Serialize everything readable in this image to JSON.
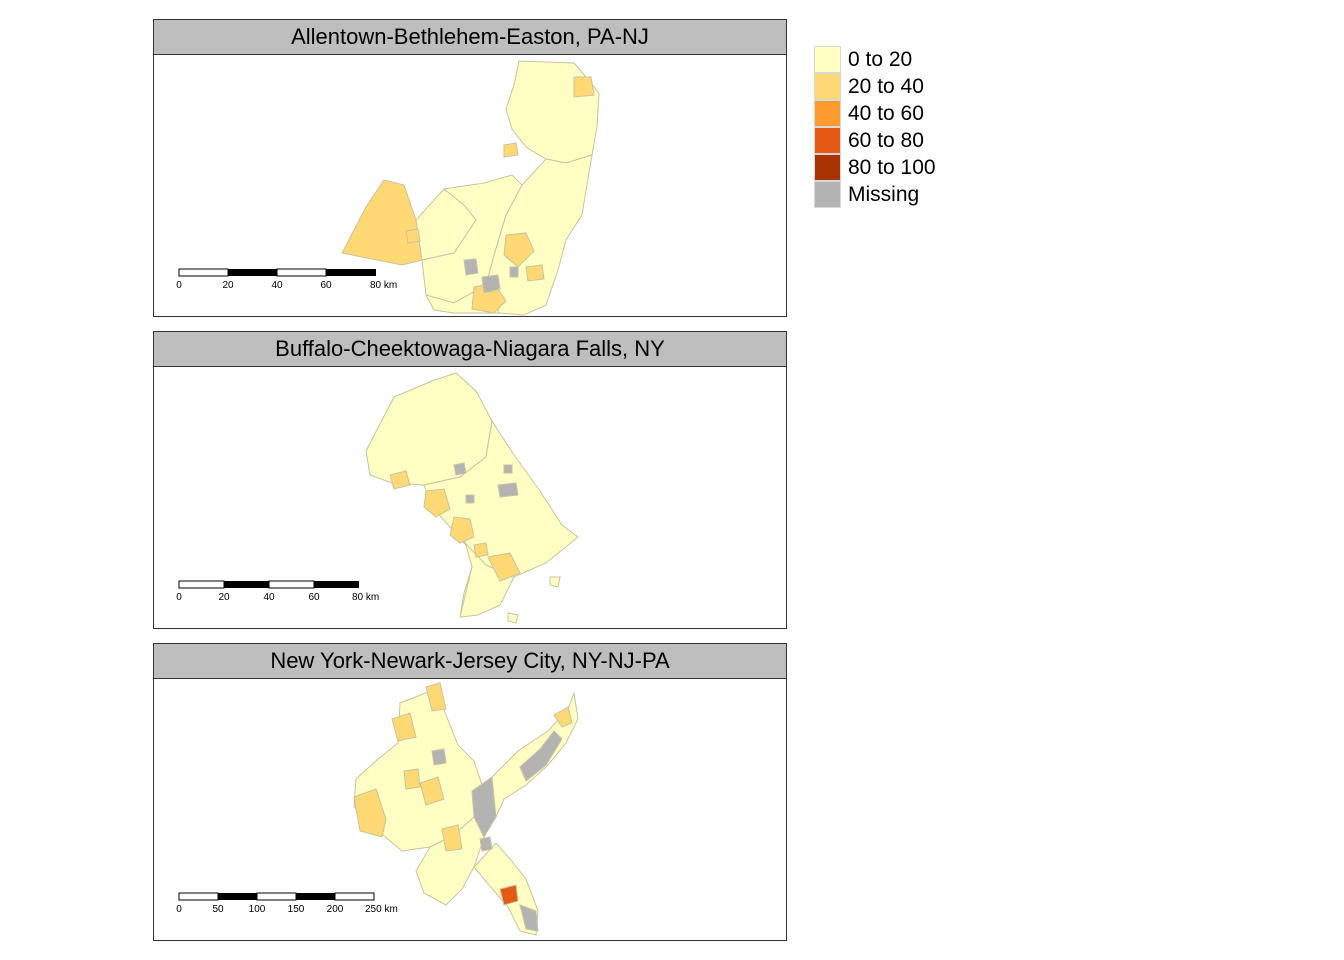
{
  "panels": [
    {
      "title": "Allentown-Bethlehem-Easton, PA-NJ",
      "scalebar": {
        "ticks": [
          "0",
          "20",
          "40",
          "60",
          "80 km"
        ]
      }
    },
    {
      "title": "Buffalo-Cheektowaga-Niagara Falls, NY",
      "scalebar": {
        "ticks": [
          "0",
          "20",
          "40",
          "60",
          "80 km"
        ]
      }
    },
    {
      "title": "New York-Newark-Jersey City, NY-NJ-PA",
      "scalebar": {
        "ticks": [
          "0",
          "50",
          "100",
          "150",
          "200",
          "250 km"
        ]
      }
    }
  ],
  "legend": [
    {
      "label": "0 to 20",
      "color": "#ffffc4"
    },
    {
      "label": "20 to 40",
      "color": "#fed872"
    },
    {
      "label": "40 to 60",
      "color": "#fe9a2e"
    },
    {
      "label": "60 to 80",
      "color": "#e45a12"
    },
    {
      "label": "80 to 100",
      "color": "#a83201"
    },
    {
      "label": "Missing",
      "color": "#b3b3b3"
    }
  ],
  "colors": {
    "c1": "#ffffc4",
    "c2": "#fed872",
    "c3": "#fe9a2e",
    "c4": "#e45a12",
    "missing": "#b3b3b3",
    "border": "#c9c2a0"
  }
}
